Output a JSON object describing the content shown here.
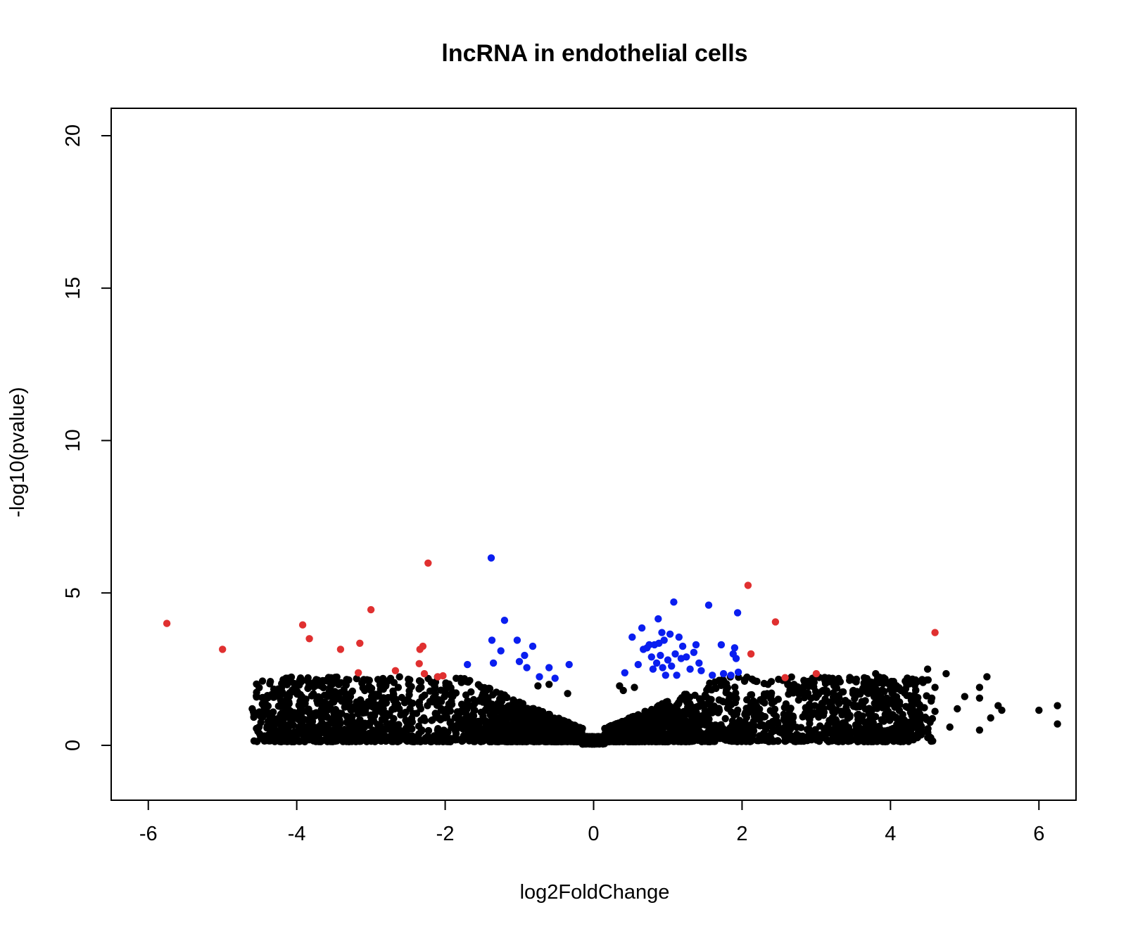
{
  "chart_data": {
    "type": "scatter",
    "title": "lncRNA in endothelial cells",
    "xlabel": "log2FoldChange",
    "ylabel": "-log10(pvalue)",
    "xlim": [
      -6.5,
      6.5
    ],
    "ylim": [
      -1.8,
      20.9
    ],
    "x_ticks": [
      -6,
      -4,
      -2,
      0,
      2,
      4,
      6
    ],
    "y_ticks": [
      0,
      5,
      10,
      15,
      20
    ],
    "grid": false,
    "legend": "none",
    "colors": {
      "not_significant": "#000000",
      "fold_change_only": "#e03030",
      "pvalue_only": "#0a1ef0"
    },
    "series": [
      {
        "color": "#e03030",
        "points": [
          [
            -5.75,
            4.0
          ],
          [
            -5.0,
            3.15
          ],
          [
            -3.92,
            3.95
          ],
          [
            -3.83,
            3.5
          ],
          [
            -3.41,
            3.15
          ],
          [
            -3.15,
            3.35
          ],
          [
            -3.17,
            2.38
          ],
          [
            -3.0,
            4.45
          ],
          [
            -2.67,
            2.45
          ],
          [
            -2.3,
            3.25
          ],
          [
            -2.34,
            3.15
          ],
          [
            -2.35,
            2.68
          ],
          [
            -2.28,
            2.35
          ],
          [
            -2.23,
            5.98
          ],
          [
            -2.1,
            2.25
          ],
          [
            -2.03,
            2.28
          ],
          [
            2.08,
            5.25
          ],
          [
            2.12,
            3.0
          ],
          [
            2.45,
            4.05
          ],
          [
            2.58,
            2.22
          ],
          [
            3.0,
            2.35
          ],
          [
            4.6,
            3.7
          ]
        ]
      },
      {
        "color": "#0a1ef0",
        "points": [
          [
            -1.7,
            2.65
          ],
          [
            -1.38,
            6.15
          ],
          [
            -1.37,
            3.45
          ],
          [
            -1.35,
            2.7
          ],
          [
            -1.25,
            3.1
          ],
          [
            -1.2,
            4.1
          ],
          [
            -1.03,
            3.45
          ],
          [
            -1.0,
            2.75
          ],
          [
            -0.93,
            2.95
          ],
          [
            -0.9,
            2.55
          ],
          [
            -0.82,
            3.25
          ],
          [
            -0.73,
            2.25
          ],
          [
            -0.6,
            2.55
          ],
          [
            -0.52,
            2.2
          ],
          [
            -0.33,
            2.65
          ],
          [
            0.42,
            2.38
          ],
          [
            0.52,
            3.55
          ],
          [
            0.6,
            2.65
          ],
          [
            0.65,
            3.85
          ],
          [
            0.67,
            3.15
          ],
          [
            0.72,
            3.2
          ],
          [
            0.75,
            3.3
          ],
          [
            0.78,
            2.9
          ],
          [
            0.8,
            2.5
          ],
          [
            0.82,
            3.3
          ],
          [
            0.85,
            2.7
          ],
          [
            0.87,
            4.15
          ],
          [
            0.88,
            3.35
          ],
          [
            0.9,
            2.95
          ],
          [
            0.92,
            3.7
          ],
          [
            0.93,
            2.55
          ],
          [
            0.95,
            3.45
          ],
          [
            0.97,
            2.3
          ],
          [
            1.0,
            2.8
          ],
          [
            1.03,
            3.65
          ],
          [
            1.05,
            2.6
          ],
          [
            1.08,
            4.7
          ],
          [
            1.1,
            3.0
          ],
          [
            1.12,
            2.3
          ],
          [
            1.15,
            3.55
          ],
          [
            1.18,
            2.85
          ],
          [
            1.2,
            3.25
          ],
          [
            1.25,
            2.9
          ],
          [
            1.3,
            2.5
          ],
          [
            1.35,
            3.05
          ],
          [
            1.38,
            3.3
          ],
          [
            1.42,
            2.7
          ],
          [
            1.45,
            2.45
          ],
          [
            1.55,
            4.6
          ],
          [
            1.6,
            2.3
          ],
          [
            1.72,
            3.3
          ],
          [
            1.75,
            2.35
          ],
          [
            1.85,
            2.3
          ],
          [
            1.88,
            3.0
          ],
          [
            1.9,
            3.2
          ],
          [
            1.92,
            2.85
          ],
          [
            1.94,
            4.35
          ],
          [
            1.95,
            2.4
          ]
        ]
      }
    ]
  }
}
